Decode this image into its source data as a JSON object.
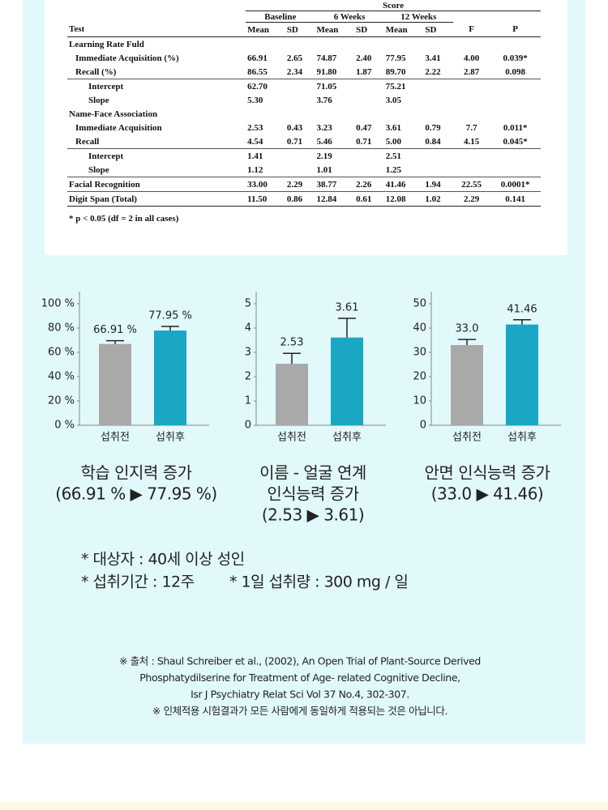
{
  "table": {
    "super_header": "Score",
    "group_headers": [
      "Baseline",
      "6 Weeks",
      "12 Weeks"
    ],
    "columns": [
      "Test",
      "Mean",
      "SD",
      "Mean",
      "SD",
      "Mean",
      "SD",
      "F",
      "P"
    ],
    "rows": [
      [
        "Learning Rate Fuld",
        null,
        null,
        null,
        null,
        null,
        null,
        null,
        null
      ],
      [
        "Immediate Acquisition (%)",
        "66.91",
        "2.65",
        "74.87",
        "2.40",
        "77.95",
        "3.41",
        "4.00",
        "0.039*"
      ],
      [
        "Recall (%)",
        "86.55",
        "2.34",
        "91.80",
        "1.87",
        "89.70",
        "2.22",
        "2.87",
        "0.098"
      ],
      [
        "Intercept",
        "62.70",
        null,
        "71.05",
        null,
        "75.21",
        null,
        null,
        null
      ],
      [
        "Slope",
        "5.30",
        null,
        "3.76",
        null,
        "3.05",
        null,
        null,
        null
      ],
      [
        "Name-Face Association",
        null,
        null,
        null,
        null,
        null,
        null,
        null,
        null
      ],
      [
        "Immediate Acquisition",
        "2.53",
        "0.43",
        "3.23",
        "0.47",
        "3.61",
        "0.79",
        "7.7",
        "0.011*"
      ],
      [
        "Recall",
        "4.54",
        "0.71",
        "5.46",
        "0.71",
        "5.00",
        "0.84",
        "4.15",
        "0.045*"
      ],
      [
        "Intercept",
        "1.41",
        null,
        "2.19",
        null,
        "2.51",
        null,
        null,
        null
      ],
      [
        "Slope",
        "1.12",
        null,
        "1.01",
        null,
        "1.25",
        null,
        null,
        null
      ],
      [
        "Facial Recognition",
        "33.00",
        "2.29",
        "38.77",
        "2.26",
        "41.46",
        "1.94",
        "22.55",
        "0.0001*"
      ],
      [
        "Digit Span (Total)",
        "11.50",
        "0.86",
        "12.84",
        "0.61",
        "12.08",
        "1.02",
        "2.29",
        "0.141"
      ]
    ],
    "footnote": "* p < 0.05 (df = 2 in all cases)"
  },
  "chart_data": [
    {
      "type": "bar",
      "categories": [
        "섭취전",
        "섭취후"
      ],
      "values": [
        66.91,
        77.95
      ],
      "value_labels": [
        "66.91 %",
        "77.95 %"
      ],
      "errors": [
        2.65,
        3.41
      ],
      "colors": [
        "#a9a9a9",
        "#1aa7c3"
      ],
      "ylim": [
        0,
        100
      ],
      "yticks": [
        {
          "value": 0,
          "label": "0 %"
        },
        {
          "value": 20,
          "label": "20 %"
        },
        {
          "value": 40,
          "label": "40 %"
        },
        {
          "value": 60,
          "label": "60 %"
        },
        {
          "value": 80,
          "label": "80 %"
        },
        {
          "value": 100,
          "label": "100 %"
        }
      ],
      "caption": [
        "학습 인지력 증가",
        "(66.91 % ▶ 77.95 %)"
      ]
    },
    {
      "type": "bar",
      "categories": [
        "섭취전",
        "섭취후"
      ],
      "values": [
        2.53,
        3.61
      ],
      "errors": [
        0.43,
        0.79
      ],
      "colors": [
        "#a9a9a9",
        "#1aa7c3"
      ],
      "ylim": [
        0,
        5
      ],
      "yticks": [
        0,
        1,
        2,
        3,
        4,
        5
      ],
      "caption": [
        "이름 - 얼굴 연계",
        "인식능력 증가",
        "(2.53 ▶ 3.61)"
      ]
    },
    {
      "type": "bar",
      "categories": [
        "섭취전",
        "섭취후"
      ],
      "values": [
        33.0,
        41.46
      ],
      "value_labels": [
        "33.0",
        "41.46"
      ],
      "errors": [
        2.29,
        1.94
      ],
      "colors": [
        "#a9a9a9",
        "#1aa7c3"
      ],
      "ylim": [
        0,
        50
      ],
      "yticks": [
        0,
        10,
        20,
        30,
        40,
        50
      ],
      "caption": [
        "안면 인식능력 증가",
        "(33.0 ▶ 41.46)"
      ]
    }
  ],
  "notes": [
    "* 대상자 : 40세 이상 성인",
    "* 섭취기간 : 12주",
    "* 1일 섭취량 : 300 mg / 일"
  ],
  "source": [
    "※ 출처 : Shaul Schreiber et al., (2002),  An Open Trial of Plant-Source Derived",
    "Phosphatydilserine for Treatment of Age- related Cognitive Decline,",
    "Isr J Psychiatry Relat Sci Vol 37 No.4, 302-307.",
    "※ 인체적용 시험결과가 모든 사람에게 동일하게 적용되는 것은 아닙니다."
  ]
}
